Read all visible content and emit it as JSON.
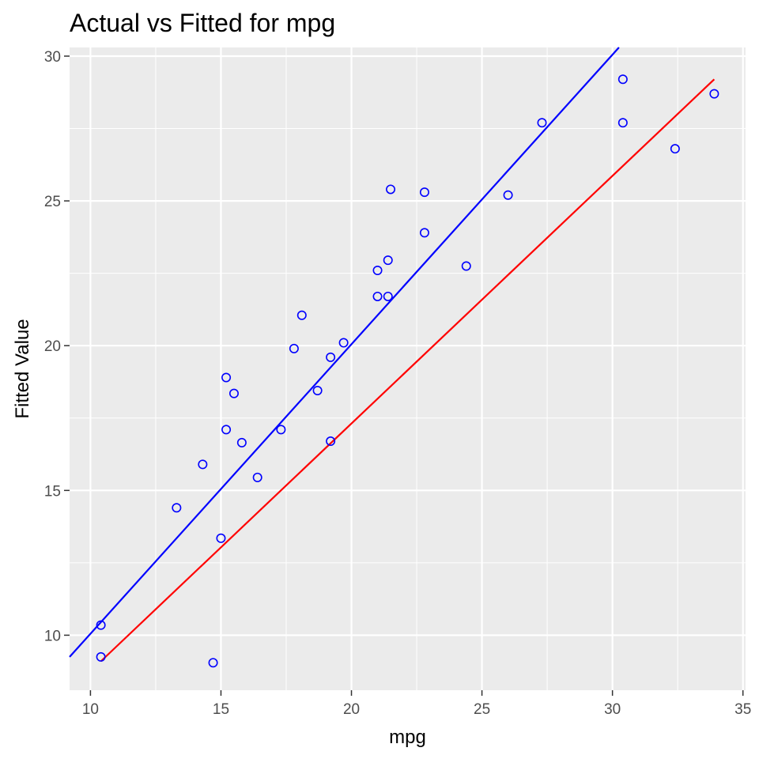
{
  "colors": {
    "panel": "#ebebeb",
    "grid": "#ffffff",
    "tick": "#333333",
    "points": "#0000ff",
    "fit_line": "#0000ff",
    "ref_line": "#ff0000"
  },
  "chart_data": {
    "type": "scatter",
    "title": "Actual vs Fitted for mpg",
    "xlabel": "mpg",
    "ylabel": "Fitted Value",
    "xlim": [
      9.2,
      35.1
    ],
    "ylim": [
      8.1,
      30.3
    ],
    "xticks": [
      10,
      15,
      20,
      25,
      30,
      35
    ],
    "yticks": [
      10,
      15,
      20,
      25,
      30
    ],
    "xticklabels": [
      "10",
      "15",
      "20",
      "25",
      "30",
      "35"
    ],
    "yticklabels": [
      "10",
      "15",
      "20",
      "25",
      "30"
    ],
    "grid": true,
    "legend": "none",
    "points": [
      {
        "x": 10.4,
        "y": 10.35
      },
      {
        "x": 10.4,
        "y": 9.25
      },
      {
        "x": 13.3,
        "y": 14.4
      },
      {
        "x": 14.3,
        "y": 15.9
      },
      {
        "x": 14.7,
        "y": 9.05
      },
      {
        "x": 15.0,
        "y": 13.35
      },
      {
        "x": 15.2,
        "y": 18.9
      },
      {
        "x": 15.2,
        "y": 17.1
      },
      {
        "x": 15.5,
        "y": 18.35
      },
      {
        "x": 15.8,
        "y": 16.65
      },
      {
        "x": 16.4,
        "y": 15.45
      },
      {
        "x": 17.3,
        "y": 17.1
      },
      {
        "x": 17.8,
        "y": 19.9
      },
      {
        "x": 18.1,
        "y": 21.05
      },
      {
        "x": 18.7,
        "y": 18.45
      },
      {
        "x": 19.2,
        "y": 19.6
      },
      {
        "x": 19.2,
        "y": 16.7
      },
      {
        "x": 19.7,
        "y": 20.1
      },
      {
        "x": 21.0,
        "y": 22.6
      },
      {
        "x": 21.0,
        "y": 21.7
      },
      {
        "x": 21.4,
        "y": 22.95
      },
      {
        "x": 21.4,
        "y": 21.7
      },
      {
        "x": 21.5,
        "y": 25.4
      },
      {
        "x": 22.8,
        "y": 25.3
      },
      {
        "x": 22.8,
        "y": 23.9
      },
      {
        "x": 24.4,
        "y": 22.75
      },
      {
        "x": 26.0,
        "y": 25.2
      },
      {
        "x": 27.3,
        "y": 27.7
      },
      {
        "x": 30.4,
        "y": 29.2
      },
      {
        "x": 30.4,
        "y": 27.7
      },
      {
        "x": 32.4,
        "y": 26.8
      },
      {
        "x": 33.9,
        "y": 28.7
      }
    ],
    "lines": [
      {
        "role": "fit",
        "x": [
          9.2,
          30.25
        ],
        "y": [
          9.25,
          30.3
        ]
      },
      {
        "role": "reference",
        "x": [
          10.4,
          33.9
        ],
        "y": [
          9.1,
          29.2
        ]
      }
    ]
  }
}
